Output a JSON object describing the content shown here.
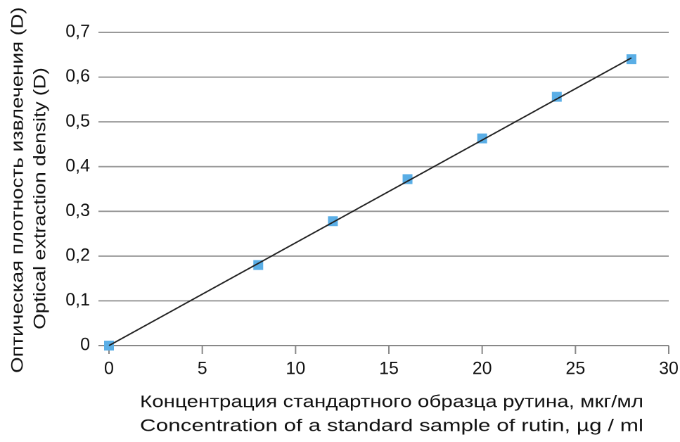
{
  "chart_data": {
    "type": "scatter",
    "xlabel": [
      "Концентрация стандартного образца рутина, мкг/мл",
      "Concentration of a standard sample of rutin, µg / ml"
    ],
    "ylabel": [
      "Оптическая плотность извлечения (D)",
      "Optical extraction density (D)"
    ],
    "x": [
      0,
      8,
      12,
      16,
      20,
      24,
      28
    ],
    "values": [
      0,
      0.18,
      0.278,
      0.372,
      0.463,
      0.556,
      0.64
    ],
    "color": "#5aaee6",
    "trendline": {
      "x": [
        0,
        28
      ],
      "values": [
        0,
        0.643
      ],
      "color": "#222222"
    },
    "xlim": [
      0,
      30
    ],
    "xticks": [
      0,
      5,
      10,
      15,
      20,
      25,
      30
    ],
    "ylim": [
      0,
      0.7
    ],
    "yticks": [
      0,
      {
        "value": 0.1,
        "label": "0,1"
      },
      {
        "value": 0.2,
        "label": "0,2"
      },
      {
        "value": 0.3,
        "label": "0,3"
      },
      {
        "value": 0.4,
        "label": "0,4"
      },
      {
        "value": 0.5,
        "label": "0,5"
      },
      {
        "value": 0.6,
        "label": "0,6"
      },
      {
        "value": 0.7,
        "label": "0,7"
      }
    ],
    "grid": true
  }
}
